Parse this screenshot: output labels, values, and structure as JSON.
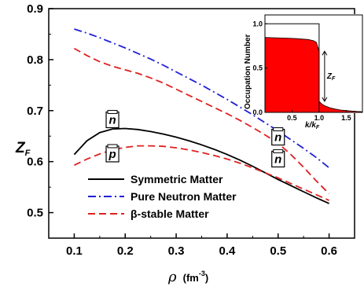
{
  "chart_data": [
    {
      "type": "line",
      "xlabel_symbol": "ρ",
      "xlabel_unit": "(fm",
      "xlabel_exp": "-3",
      "xlabel_close": ")",
      "ylabel_symbol": "Z",
      "ylabel_sub": "F",
      "xlim": [
        0.05,
        0.65
      ],
      "ylim": [
        0.45,
        0.9
      ],
      "xticks": [
        "0.1",
        "0.2",
        "0.3",
        "0.4",
        "0.5",
        "0.6"
      ],
      "yticks": [
        "0.5",
        "0.6",
        "0.7",
        "0.8",
        "0.9"
      ],
      "legend_position": "lower-left",
      "series": [
        {
          "name": "Symmetric Matter",
          "color": "#000000",
          "style": "solid",
          "x": [
            0.1,
            0.125,
            0.15,
            0.175,
            0.2,
            0.225,
            0.25,
            0.275,
            0.3,
            0.325,
            0.35,
            0.375,
            0.4,
            0.425,
            0.45,
            0.475,
            0.5,
            0.525,
            0.55,
            0.575,
            0.6
          ],
          "y": [
            0.614,
            0.641,
            0.657,
            0.664,
            0.665,
            0.663,
            0.659,
            0.654,
            0.648,
            0.641,
            0.633,
            0.624,
            0.614,
            0.603,
            0.591,
            0.578,
            0.565,
            0.553,
            0.541,
            0.529,
            0.518
          ]
        },
        {
          "name": "Pure Neutron Matter",
          "color": "#1f1fd6",
          "style": "dashdot",
          "x": [
            0.1,
            0.125,
            0.15,
            0.175,
            0.2,
            0.225,
            0.25,
            0.275,
            0.3,
            0.325,
            0.35,
            0.375,
            0.4,
            0.425,
            0.45,
            0.475,
            0.5,
            0.525,
            0.55,
            0.575,
            0.6
          ],
          "y": [
            0.86,
            0.852,
            0.843,
            0.833,
            0.823,
            0.812,
            0.801,
            0.789,
            0.776,
            0.763,
            0.75,
            0.736,
            0.722,
            0.707,
            0.692,
            0.676,
            0.66,
            0.643,
            0.626,
            0.608,
            0.588
          ]
        },
        {
          "name": "β-stable Matter",
          "color": "#e02020",
          "style": "dashed",
          "x": [
            0.1,
            0.125,
            0.15,
            0.175,
            0.2,
            0.225,
            0.25,
            0.275,
            0.3,
            0.325,
            0.35,
            0.375,
            0.4,
            0.425,
            0.45,
            0.475,
            0.5,
            0.525,
            0.55,
            0.575,
            0.6
          ],
          "y": [
            0.822,
            0.808,
            0.796,
            0.787,
            0.78,
            0.773,
            0.764,
            0.754,
            0.742,
            0.73,
            0.718,
            0.706,
            0.694,
            0.681,
            0.667,
            0.652,
            0.636,
            0.614,
            0.589,
            0.562,
            0.537
          ]
        },
        {
          "name": "",
          "color": "#e02020",
          "style": "dashed",
          "x": [
            0.1,
            0.125,
            0.15,
            0.175,
            0.2,
            0.225,
            0.25,
            0.275,
            0.3,
            0.325,
            0.35,
            0.375,
            0.4,
            0.425,
            0.45,
            0.475,
            0.5,
            0.525,
            0.55,
            0.575,
            0.6
          ],
          "y": [
            0.593,
            0.605,
            0.615,
            0.623,
            0.628,
            0.631,
            0.631,
            0.63,
            0.627,
            0.623,
            0.618,
            0.612,
            0.605,
            0.597,
            0.588,
            0.578,
            0.568,
            0.557,
            0.546,
            0.535,
            0.524
          ]
        }
      ],
      "annotations": [
        {
          "label": "n",
          "x": 0.175,
          "y": 0.682
        },
        {
          "label": "p",
          "x": 0.175,
          "y": 0.615
        },
        {
          "label": "n",
          "x": 0.5,
          "y": 0.648
        },
        {
          "label": "n",
          "x": 0.5,
          "y": 0.605
        }
      ]
    },
    {
      "type": "area",
      "xlabel": "k/k",
      "xlabel_sub": "F",
      "ylabel": "Occupation Number",
      "xlim": [
        0,
        1.8
      ],
      "ylim": [
        0,
        1.1
      ],
      "xticks": [
        "0.5",
        "1.0",
        "1.5"
      ],
      "yticks": [
        "0.0",
        "0.5",
        "1.0"
      ],
      "step_value": 1.0,
      "fill_color": "#ff0000",
      "jump_label": "Z",
      "jump_label_sub": "F",
      "jump_x": 1.0,
      "jump_top": 0.69,
      "jump_bottom": 0.125,
      "x": [
        0.0,
        0.2,
        0.4,
        0.6,
        0.8,
        0.9,
        0.95,
        1.0,
        1.0,
        1.05,
        1.1,
        1.2,
        1.3,
        1.4,
        1.5,
        1.6,
        1.7,
        1.8
      ],
      "y": [
        0.845,
        0.842,
        0.838,
        0.832,
        0.822,
        0.808,
        0.79,
        0.69,
        0.125,
        0.095,
        0.075,
        0.052,
        0.037,
        0.027,
        0.02,
        0.015,
        0.011,
        0.008
      ]
    }
  ]
}
